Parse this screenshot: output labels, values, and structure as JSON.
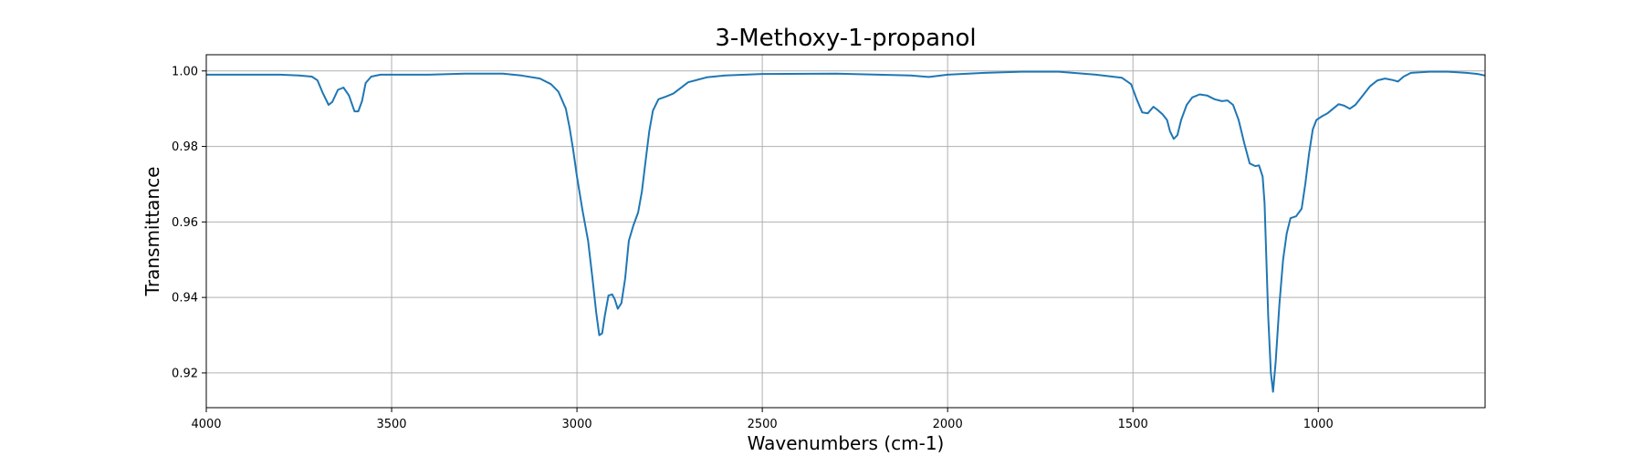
{
  "chart_data": {
    "type": "line",
    "title": "3-Methoxy-1-propanol",
    "xlabel": "Wavenumbers (cm-1)",
    "ylabel": "Transmittance",
    "xlim": [
      4000,
      550
    ],
    "ylim": [
      0.9108,
      1.0043
    ],
    "x_ticks": [
      4000,
      3500,
      3000,
      2500,
      2000,
      1500,
      1000
    ],
    "x_tick_labels": [
      "4000",
      "3500",
      "3000",
      "2500",
      "2000",
      "1500",
      "1000"
    ],
    "y_ticks": [
      0.92,
      0.94,
      0.96,
      0.98,
      1.0
    ],
    "y_tick_labels": [
      "0.92",
      "0.94",
      "0.96",
      "0.98",
      "1.00"
    ],
    "grid": true,
    "series": [
      {
        "color": "#1f77b4",
        "points": [
          [
            4000,
            0.999
          ],
          [
            3950,
            0.999
          ],
          [
            3900,
            0.999
          ],
          [
            3850,
            0.999
          ],
          [
            3800,
            0.999
          ],
          [
            3750,
            0.9988
          ],
          [
            3715,
            0.9985
          ],
          [
            3700,
            0.9975
          ],
          [
            3685,
            0.994
          ],
          [
            3670,
            0.991
          ],
          [
            3660,
            0.9918
          ],
          [
            3645,
            0.995
          ],
          [
            3630,
            0.9956
          ],
          [
            3615,
            0.9935
          ],
          [
            3600,
            0.9893
          ],
          [
            3590,
            0.9893
          ],
          [
            3580,
            0.992
          ],
          [
            3570,
            0.9968
          ],
          [
            3555,
            0.9985
          ],
          [
            3530,
            0.999
          ],
          [
            3400,
            0.999
          ],
          [
            3300,
            0.9993
          ],
          [
            3200,
            0.9993
          ],
          [
            3150,
            0.9988
          ],
          [
            3100,
            0.998
          ],
          [
            3070,
            0.9965
          ],
          [
            3050,
            0.9945
          ],
          [
            3030,
            0.99
          ],
          [
            3020,
            0.985
          ],
          [
            3010,
            0.979
          ],
          [
            3000,
            0.972
          ],
          [
            2985,
            0.963
          ],
          [
            2970,
            0.955
          ],
          [
            2958,
            0.945
          ],
          [
            2948,
            0.936
          ],
          [
            2940,
            0.93
          ],
          [
            2932,
            0.9305
          ],
          [
            2925,
            0.935
          ],
          [
            2915,
            0.9405
          ],
          [
            2905,
            0.9408
          ],
          [
            2898,
            0.9395
          ],
          [
            2890,
            0.937
          ],
          [
            2880,
            0.9385
          ],
          [
            2870,
            0.945
          ],
          [
            2860,
            0.955
          ],
          [
            2848,
            0.959
          ],
          [
            2835,
            0.9625
          ],
          [
            2825,
            0.968
          ],
          [
            2815,
            0.976
          ],
          [
            2805,
            0.984
          ],
          [
            2795,
            0.9895
          ],
          [
            2780,
            0.9925
          ],
          [
            2760,
            0.9932
          ],
          [
            2740,
            0.994
          ],
          [
            2720,
            0.9955
          ],
          [
            2700,
            0.997
          ],
          [
            2650,
            0.9983
          ],
          [
            2600,
            0.9988
          ],
          [
            2500,
            0.9992
          ],
          [
            2300,
            0.9993
          ],
          [
            2100,
            0.9988
          ],
          [
            2050,
            0.9984
          ],
          [
            2000,
            0.999
          ],
          [
            1900,
            0.9995
          ],
          [
            1800,
            0.9998
          ],
          [
            1700,
            0.9998
          ],
          [
            1600,
            0.999
          ],
          [
            1530,
            0.9982
          ],
          [
            1505,
            0.9965
          ],
          [
            1490,
            0.9925
          ],
          [
            1475,
            0.989
          ],
          [
            1460,
            0.9888
          ],
          [
            1445,
            0.9905
          ],
          [
            1435,
            0.9898
          ],
          [
            1420,
            0.9885
          ],
          [
            1408,
            0.987
          ],
          [
            1400,
            0.984
          ],
          [
            1390,
            0.982
          ],
          [
            1380,
            0.983
          ],
          [
            1370,
            0.987
          ],
          [
            1355,
            0.991
          ],
          [
            1340,
            0.993
          ],
          [
            1320,
            0.9938
          ],
          [
            1300,
            0.9935
          ],
          [
            1280,
            0.9925
          ],
          [
            1260,
            0.992
          ],
          [
            1245,
            0.9922
          ],
          [
            1230,
            0.991
          ],
          [
            1215,
            0.987
          ],
          [
            1200,
            0.981
          ],
          [
            1185,
            0.9755
          ],
          [
            1170,
            0.9748
          ],
          [
            1160,
            0.975
          ],
          [
            1150,
            0.972
          ],
          [
            1145,
            0.965
          ],
          [
            1140,
            0.95
          ],
          [
            1135,
            0.935
          ],
          [
            1128,
            0.92
          ],
          [
            1122,
            0.915
          ],
          [
            1115,
            0.923
          ],
          [
            1105,
            0.938
          ],
          [
            1095,
            0.95
          ],
          [
            1085,
            0.957
          ],
          [
            1075,
            0.961
          ],
          [
            1060,
            0.9615
          ],
          [
            1045,
            0.9635
          ],
          [
            1035,
            0.97
          ],
          [
            1025,
            0.978
          ],
          [
            1015,
            0.9845
          ],
          [
            1005,
            0.987
          ],
          [
            990,
            0.988
          ],
          [
            975,
            0.9888
          ],
          [
            960,
            0.99
          ],
          [
            945,
            0.9912
          ],
          [
            930,
            0.9908
          ],
          [
            915,
            0.99
          ],
          [
            900,
            0.991
          ],
          [
            880,
            0.9935
          ],
          [
            860,
            0.996
          ],
          [
            840,
            0.9975
          ],
          [
            820,
            0.998
          ],
          [
            800,
            0.9976
          ],
          [
            785,
            0.9972
          ],
          [
            770,
            0.9985
          ],
          [
            750,
            0.9995
          ],
          [
            700,
            0.9998
          ],
          [
            650,
            0.9998
          ],
          [
            600,
            0.9995
          ],
          [
            570,
            0.9992
          ],
          [
            550,
            0.9988
          ]
        ]
      }
    ]
  }
}
